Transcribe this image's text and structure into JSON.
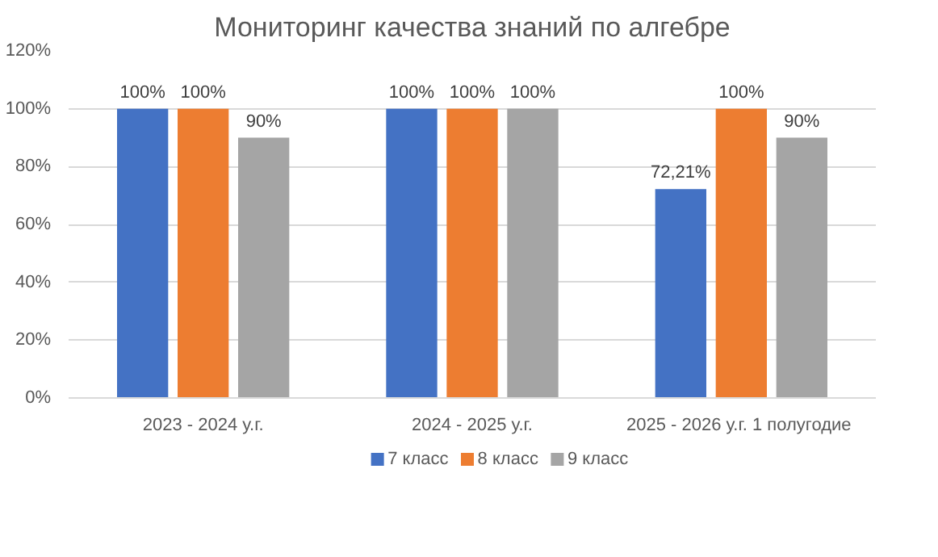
{
  "chart_data": {
    "type": "bar",
    "title": "Мониторинг качества знаний по алгебре",
    "categories": [
      "2023 - 2024 у.г.",
      "2024 - 2025 у.г.",
      "2025 - 2026 у.г.  1 полугодие"
    ],
    "series": [
      {
        "name": "7 класс",
        "color": "#4472c4",
        "values": [
          100,
          100,
          72.21
        ],
        "value_labels": [
          "100%",
          "100%",
          "72,21%"
        ]
      },
      {
        "name": "8 класс",
        "color": "#ed7d31",
        "values": [
          100,
          100,
          100
        ],
        "value_labels": [
          "100%",
          "100%",
          "100%"
        ]
      },
      {
        "name": "9 класс",
        "color": "#a5a5a5",
        "values": [
          90,
          100,
          90
        ],
        "value_labels": [
          "90%",
          "100%",
          "90%"
        ]
      }
    ],
    "ylim": [
      0,
      120
    ],
    "yticks": [
      {
        "value": 0,
        "label": "0%"
      },
      {
        "value": 20,
        "label": "20%"
      },
      {
        "value": 40,
        "label": "40%"
      },
      {
        "value": 60,
        "label": "60%"
      },
      {
        "value": 80,
        "label": "80%"
      },
      {
        "value": 100,
        "label": "100%"
      },
      {
        "value": 120,
        "label": "120%"
      }
    ],
    "grid": "y",
    "legend": "bottom"
  }
}
